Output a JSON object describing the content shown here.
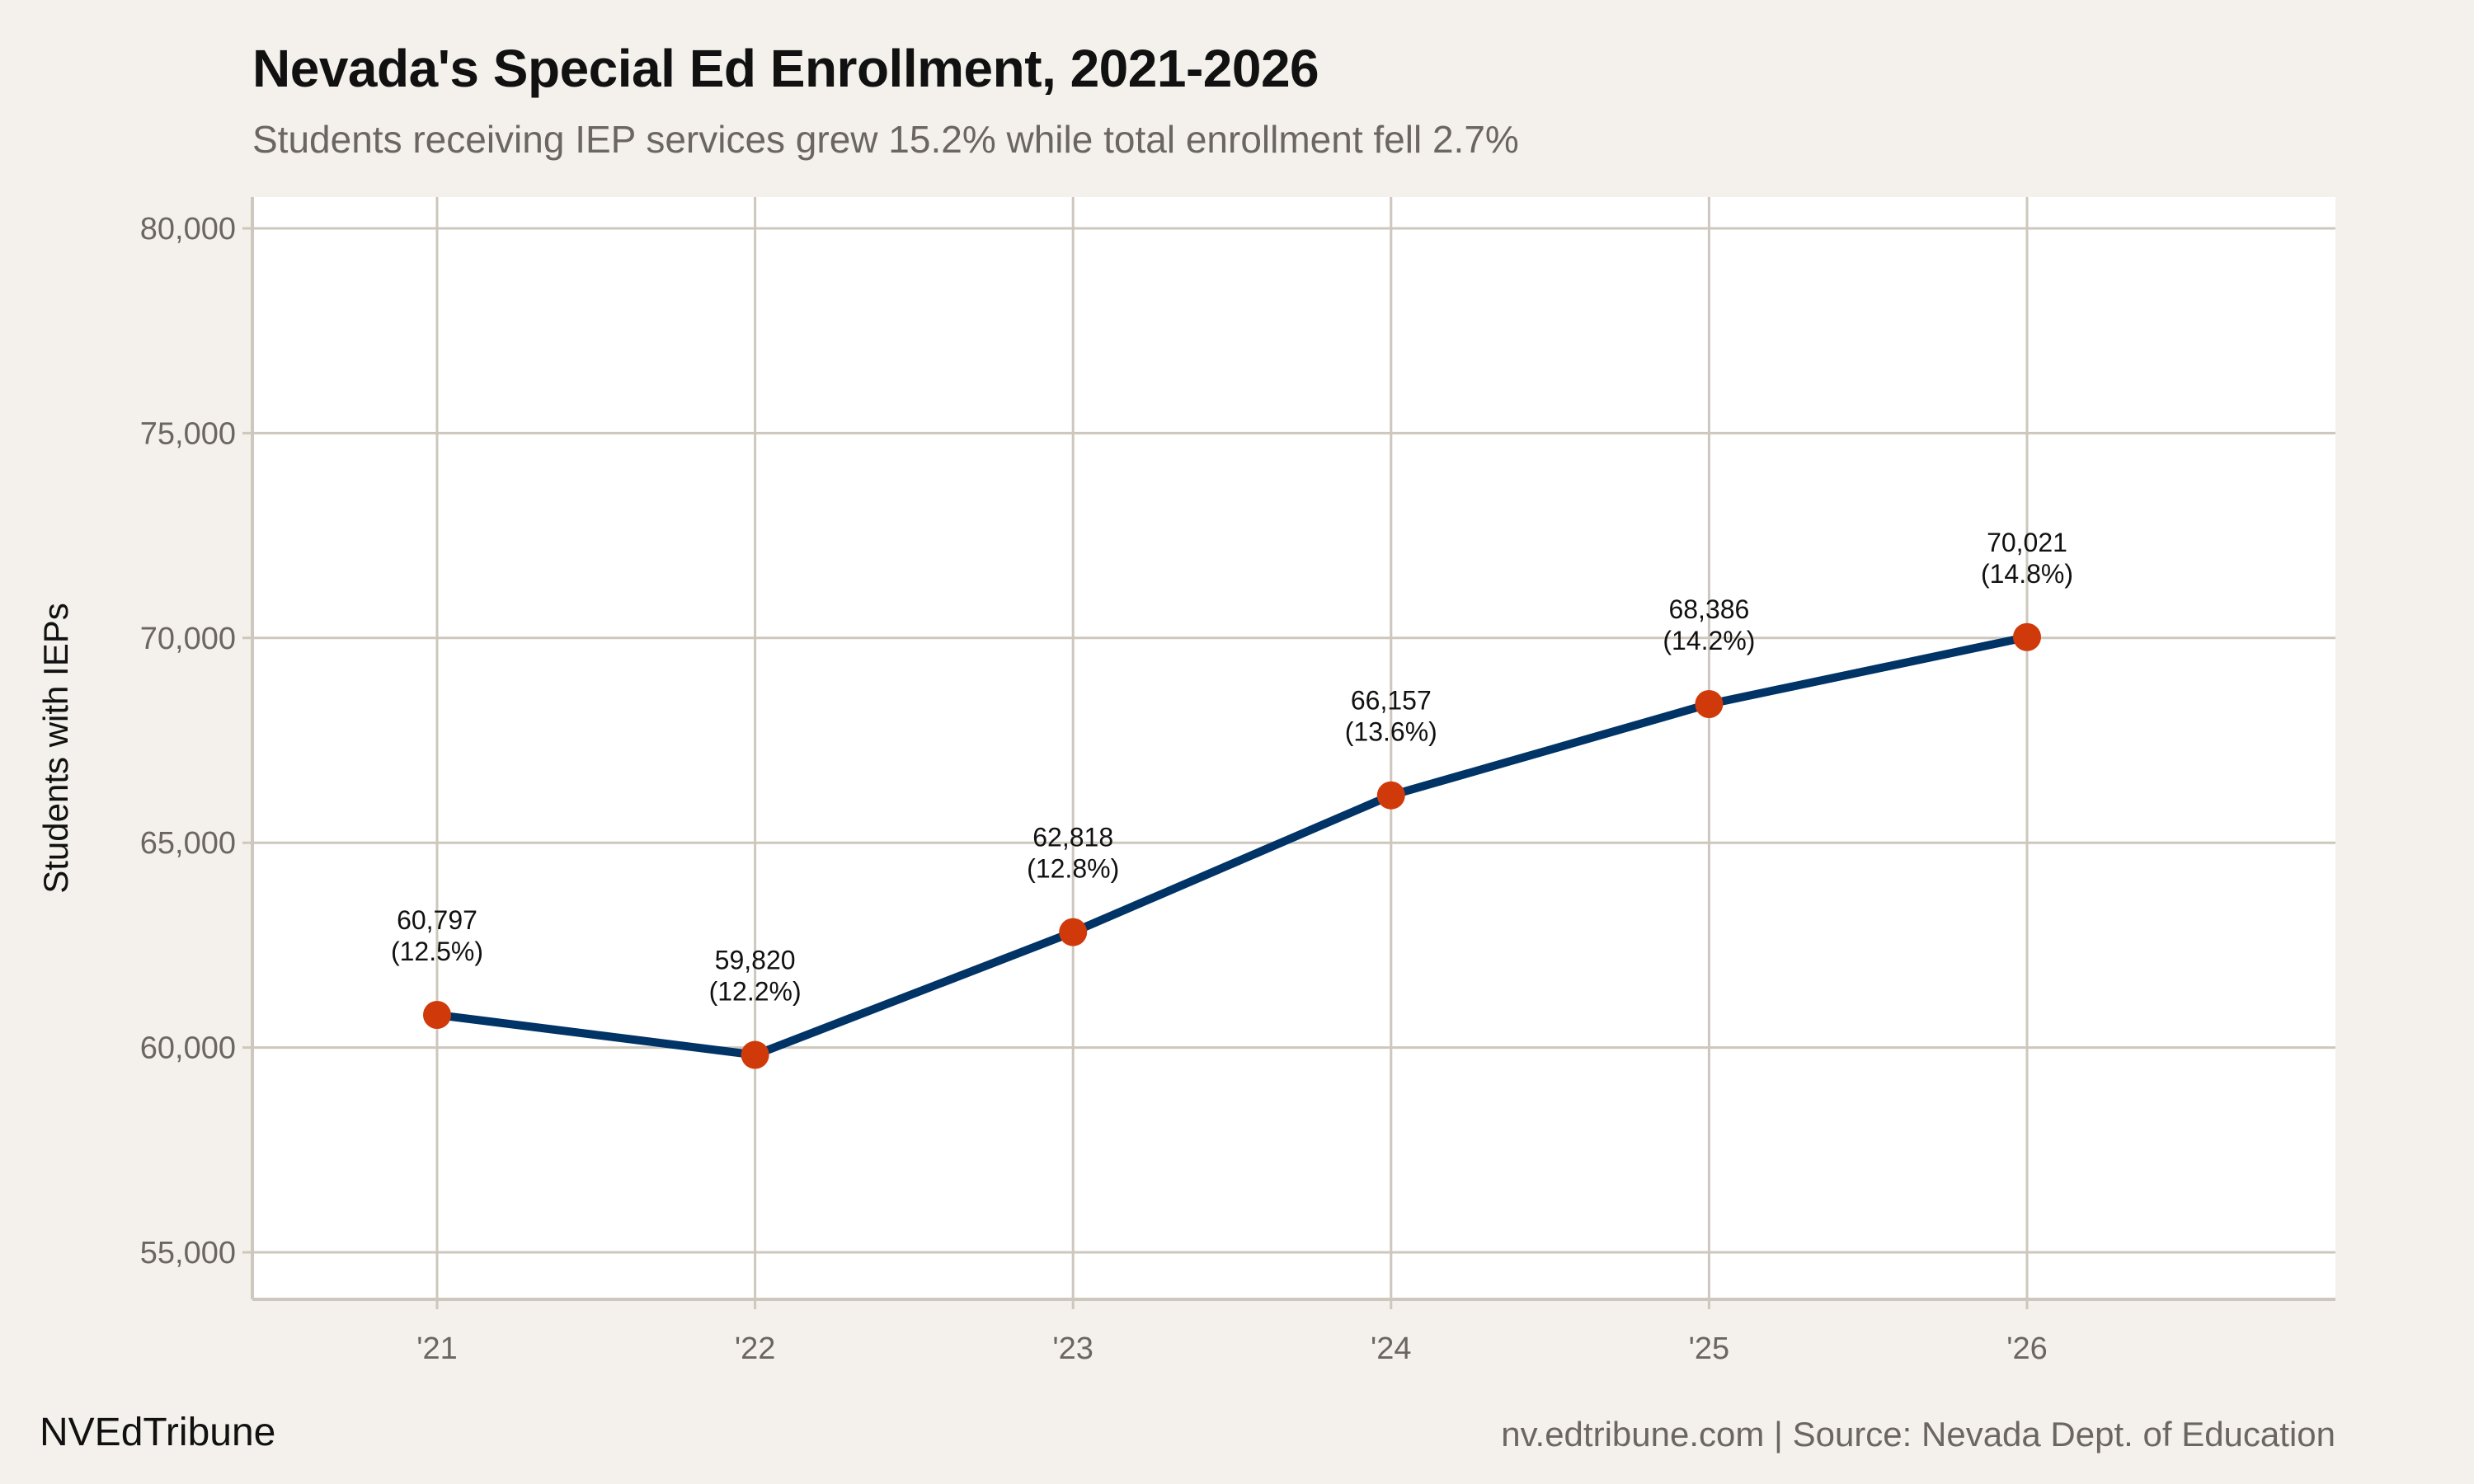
{
  "title": "Nevada's Special Ed Enrollment, 2021-2026",
  "subtitle": "Students receiving IEP services grew 15.2% while total enrollment fell 2.7%",
  "footer": {
    "brand": "NVEdTribune",
    "source": "nv.edtribune.com | Source: Nevada Dept. of Education"
  },
  "colors": {
    "background": "#f4f1ec",
    "panel": "#ffffff",
    "grid": "#cdc7bd",
    "line": "#003366",
    "point": "#d03a0a"
  },
  "chart_data": {
    "type": "line",
    "title": "Nevada's Special Ed Enrollment, 2021-2026",
    "subtitle": "Students receiving IEP services grew 15.2% while total enrollment fell 2.7%",
    "xlabel": "",
    "ylabel": "Students with IEPs",
    "categories": [
      "'21",
      "'22",
      "'23",
      "'24",
      "'25",
      "'26"
    ],
    "values": [
      60797,
      59820,
      62818,
      66157,
      68386,
      70021
    ],
    "data_labels": [
      "60,797\n(12.5%)",
      "59,820\n(12.2%)",
      "62,818\n(12.8%)",
      "66,157\n(13.6%)",
      "68,386\n(14.2%)",
      "70,021\n(14.8%)"
    ],
    "ylim": [
      54000,
      80700
    ],
    "yticks": [
      55000,
      60000,
      65000,
      70000,
      75000,
      80000
    ],
    "ytick_labels": [
      "55,000",
      "60,000",
      "65,000",
      "70,000",
      "75,000",
      "80,000"
    ],
    "grid": true,
    "legend": "none"
  }
}
